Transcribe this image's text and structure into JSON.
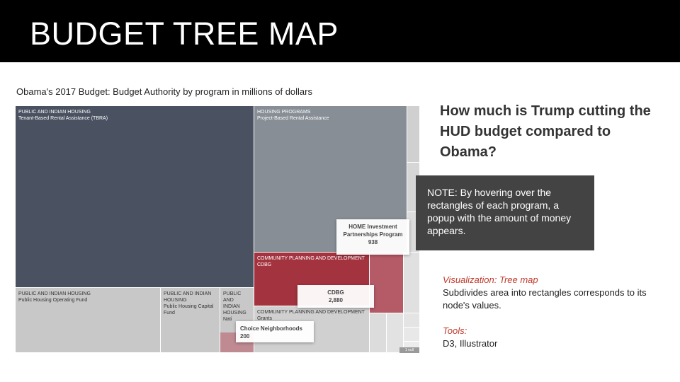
{
  "slide": {
    "title": "BUDGET TREE MAP"
  },
  "chart_data": {
    "type": "treemap",
    "title": "Obama's 2017 Budget: Budget Authority by program in millions of dollars",
    "units": "millions of dollars",
    "cells": [
      {
        "agency": "PUBLIC AND INDIAN HOUSING",
        "program": "Tenant-Based Rental Assistance (TBRA)",
        "color": "#4a5160"
      },
      {
        "agency": "HOUSING PROGRAMS",
        "program": "Project-Based Rental Assistance",
        "color": "#878e95"
      },
      {
        "agency": "PUBLIC AND INDIAN HOUSING",
        "program": "Public Housing Operating Fund",
        "color": "#c8c8c8"
      },
      {
        "agency": "PUBLIC AND INDIAN HOUSING",
        "program": "Public Housing Capital Fund",
        "color": "#c8c8c8"
      },
      {
        "agency": "PUBLIC AND INDIAN HOUSING",
        "program": "Nati",
        "color": "#c8c8c8"
      },
      {
        "agency": "COMMUNITY PLANNING AND DEVELOPMENT",
        "program": "CDBG",
        "color": "#a3333e"
      },
      {
        "agency": "COMMUNITY PLANNING AND DEVELOPMENT",
        "program": "Grants",
        "color": "#d0d0d0"
      }
    ],
    "tooltips": [
      {
        "label": "HOME Investment Partnerships Program",
        "value": "938"
      },
      {
        "label": "CDBG",
        "value": "2,880"
      },
      {
        "label": "Choice Neighborhoods",
        "value": "200"
      }
    ],
    "overflow_tag": "1 null"
  },
  "question": "How much is Trump cutting the HUD budget compared to Obama?",
  "note": "NOTE: By hovering over the rectangles of each program, a popup with the amount of money appears.",
  "info": {
    "viz_label": "Visualization: Tree map",
    "viz_desc": "Subdivides area into rectangles corresponds to its node's values.",
    "tools_label": "Tools:",
    "tools_desc": "D3, Illustrator"
  }
}
